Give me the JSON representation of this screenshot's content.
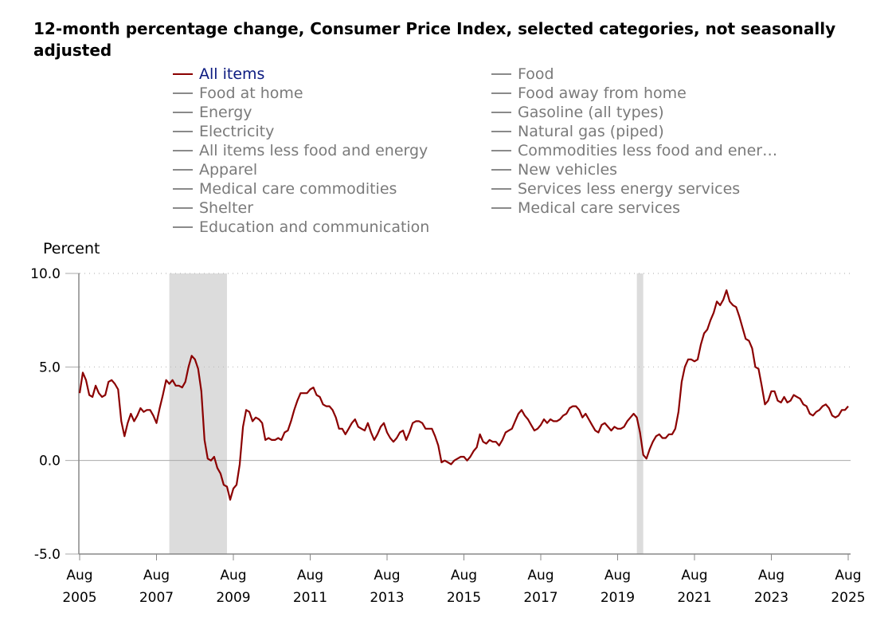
{
  "chart_data": {
    "type": "line",
    "title_lines": [
      "12-month percentage change, Consumer Price Index, selected categories, not seasonally",
      "adjusted"
    ],
    "ylabel": "Percent",
    "ylim": [
      -5,
      10
    ],
    "yticks": [
      "10.0",
      "5.0",
      "0.0",
      "-5.0"
    ],
    "ytick_values": [
      10,
      5,
      0,
      -5
    ],
    "grid": "horizontal dotted",
    "x_start": "2005-08",
    "x_end": "2025-08",
    "xticks": [
      {
        "month": "Aug",
        "year": "2005"
      },
      {
        "month": "Aug",
        "year": "2007"
      },
      {
        "month": "Aug",
        "year": "2009"
      },
      {
        "month": "Aug",
        "year": "2011"
      },
      {
        "month": "Aug",
        "year": "2013"
      },
      {
        "month": "Aug",
        "year": "2015"
      },
      {
        "month": "Aug",
        "year": "2017"
      },
      {
        "month": "Aug",
        "year": "2019"
      },
      {
        "month": "Aug",
        "year": "2021"
      },
      {
        "month": "Aug",
        "year": "2023"
      },
      {
        "month": "Aug",
        "year": "2025"
      }
    ],
    "recessions": [
      [
        "2007-12",
        "2009-06"
      ],
      [
        "2020-02",
        "2020-04"
      ]
    ],
    "legend_placement": "top",
    "legend": [
      {
        "label": "All items",
        "active": true
      },
      {
        "label": "Food",
        "active": false
      },
      {
        "label": "Food at home",
        "active": false
      },
      {
        "label": "Food away from home",
        "active": false
      },
      {
        "label": "Energy",
        "active": false
      },
      {
        "label": "Gasoline (all types)",
        "active": false
      },
      {
        "label": "Electricity",
        "active": false
      },
      {
        "label": "Natural gas (piped)",
        "active": false
      },
      {
        "label": "All items less food and energy",
        "active": false
      },
      {
        "label": "Commodities less food and ener…",
        "active": false
      },
      {
        "label": "Apparel",
        "active": false
      },
      {
        "label": "New vehicles",
        "active": false
      },
      {
        "label": "Medical care commodities",
        "active": false
      },
      {
        "label": "Services less energy services",
        "active": false
      },
      {
        "label": "Shelter",
        "active": false
      },
      {
        "label": "Medical care services",
        "active": false
      },
      {
        "label": "Education and communication",
        "active": false
      }
    ],
    "series": [
      {
        "name": "All items",
        "color": "#8b0000",
        "values": [
          3.6,
          4.7,
          4.3,
          3.5,
          3.4,
          4.0,
          3.6,
          3.4,
          3.5,
          4.2,
          4.3,
          4.1,
          3.8,
          2.1,
          1.3,
          2.0,
          2.5,
          2.1,
          2.4,
          2.8,
          2.6,
          2.7,
          2.7,
          2.4,
          2.0,
          2.8,
          3.5,
          4.3,
          4.1,
          4.3,
          4.0,
          4.0,
          3.9,
          4.2,
          5.0,
          5.6,
          5.4,
          4.9,
          3.7,
          1.1,
          0.1,
          0.0,
          0.2,
          -0.4,
          -0.7,
          -1.3,
          -1.4,
          -2.1,
          -1.5,
          -1.3,
          -0.2,
          1.8,
          2.7,
          2.6,
          2.1,
          2.3,
          2.2,
          2.0,
          1.1,
          1.2,
          1.1,
          1.1,
          1.2,
          1.1,
          1.5,
          1.6,
          2.1,
          2.7,
          3.2,
          3.6,
          3.6,
          3.6,
          3.8,
          3.9,
          3.5,
          3.4,
          3.0,
          2.9,
          2.9,
          2.7,
          2.3,
          1.7,
          1.7,
          1.4,
          1.7,
          2.0,
          2.2,
          1.8,
          1.7,
          1.6,
          2.0,
          1.5,
          1.1,
          1.4,
          1.8,
          2.0,
          1.5,
          1.2,
          1.0,
          1.2,
          1.5,
          1.6,
          1.1,
          1.5,
          2.0,
          2.1,
          2.1,
          2.0,
          1.7,
          1.7,
          1.7,
          1.3,
          0.8,
          -0.1,
          0.0,
          -0.1,
          -0.2,
          0.0,
          0.1,
          0.2,
          0.2,
          0.0,
          0.2,
          0.5,
          0.7,
          1.4,
          1.0,
          0.9,
          1.1,
          1.0,
          1.0,
          0.8,
          1.1,
          1.5,
          1.6,
          1.7,
          2.1,
          2.5,
          2.7,
          2.4,
          2.2,
          1.9,
          1.6,
          1.7,
          1.9,
          2.2,
          2.0,
          2.2,
          2.1,
          2.1,
          2.2,
          2.4,
          2.5,
          2.8,
          2.9,
          2.9,
          2.7,
          2.3,
          2.5,
          2.2,
          1.9,
          1.6,
          1.5,
          1.9,
          2.0,
          1.8,
          1.6,
          1.8,
          1.7,
          1.7,
          1.8,
          2.1,
          2.3,
          2.5,
          2.3,
          1.5,
          0.3,
          0.1,
          0.6,
          1.0,
          1.3,
          1.4,
          1.2,
          1.2,
          1.4,
          1.4,
          1.7,
          2.6,
          4.2,
          5.0,
          5.4,
          5.4,
          5.3,
          5.4,
          6.2,
          6.8,
          7.0,
          7.5,
          7.9,
          8.5,
          8.3,
          8.6,
          9.1,
          8.5,
          8.3,
          8.2,
          7.7,
          7.1,
          6.5,
          6.4,
          6.0,
          5.0,
          4.9,
          4.0,
          3.0,
          3.2,
          3.7,
          3.7,
          3.2,
          3.1,
          3.4,
          3.1,
          3.2,
          3.5,
          3.4,
          3.3,
          3.0,
          2.9,
          2.5,
          2.4,
          2.6,
          2.7,
          2.9,
          3.0,
          2.8,
          2.4,
          2.3,
          2.4,
          2.7,
          2.7,
          2.9
        ]
      }
    ]
  },
  "colors": {
    "active_legend_text": "#0b1a80",
    "inactive": "#7a7a7a",
    "recession": "#dcdcdc"
  }
}
